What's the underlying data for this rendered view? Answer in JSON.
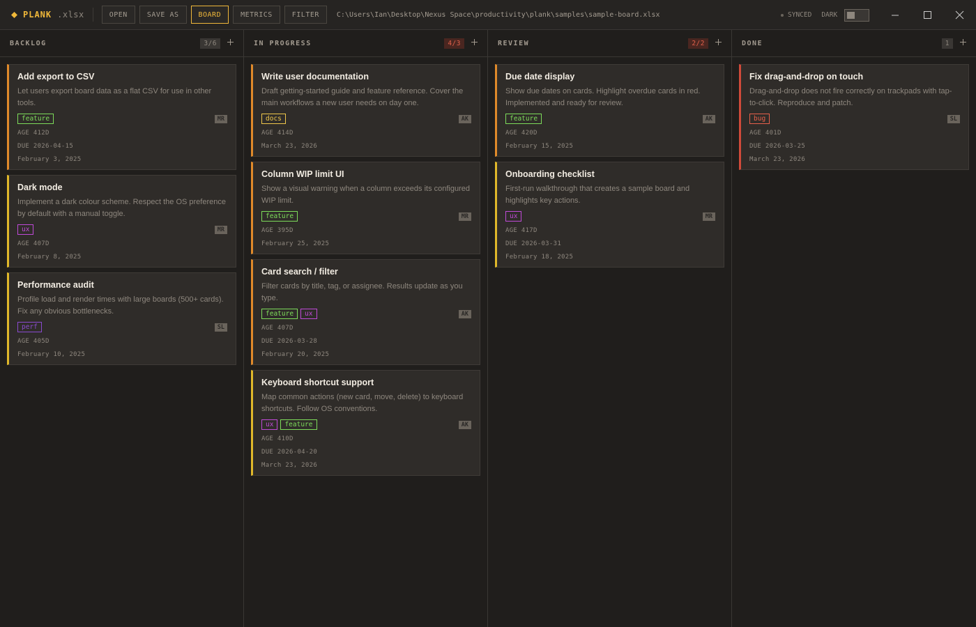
{
  "app": {
    "name": "PLANK",
    "ext": ".xlsx"
  },
  "toolbar": {
    "buttons": [
      "OPEN",
      "SAVE AS",
      "BOARD",
      "METRICS",
      "FILTER"
    ],
    "active_button": 2,
    "path": "C:\\Users\\Ian\\Desktop\\Nexus Space\\productivity\\plank\\samples\\sample-board.xlsx"
  },
  "status": {
    "sync": "SYNCED",
    "theme": "DARK"
  },
  "tag_colors": {
    "feature": "#7ddc5a",
    "docs": "#f0c84a",
    "ux": "#c04ad8",
    "perf": "#8a4ad0",
    "bug": "#e8604a"
  },
  "columns": [
    {
      "title": "BACKLOG",
      "count": "3/6",
      "count_alert": false,
      "cards": [
        {
          "title": "Add export to CSV",
          "desc": "Let users export board data as a flat CSV for use in other tools.",
          "tags": [
            "feature"
          ],
          "assignee": "MR",
          "meta": [
            "AGE 412D",
            "DUE 2026-04-15",
            "February 3, 2025"
          ],
          "accent": "#e08a2a"
        },
        {
          "title": "Dark mode",
          "desc": "Implement a dark colour scheme. Respect the OS preference by default with a manual toggle.",
          "tags": [
            "ux"
          ],
          "assignee": "MR",
          "meta": [
            "AGE 407D",
            "February 8, 2025"
          ],
          "accent": "#e0b82a"
        },
        {
          "title": "Performance audit",
          "desc": "Profile load and render times with large boards (500+ cards). Fix any obvious bottlenecks.",
          "tags": [
            "perf"
          ],
          "assignee": "SL",
          "meta": [
            "AGE 405D",
            "February 10, 2025"
          ],
          "accent": "#e0b82a"
        }
      ]
    },
    {
      "title": "IN PROGRESS",
      "count": "4/3",
      "count_alert": true,
      "cards": [
        {
          "title": "Write user documentation",
          "desc": "Draft getting-started guide and feature reference. Cover the main workflows a new user needs on day one.",
          "tags": [
            "docs"
          ],
          "assignee": "AK",
          "meta": [
            "AGE 414D",
            "March 23, 2026"
          ],
          "accent": "#e08a2a"
        },
        {
          "title": "Column WIP limit UI",
          "desc": "Show a visual warning when a column exceeds its configured WIP limit.",
          "tags": [
            "feature"
          ],
          "assignee": "MR",
          "meta": [
            "AGE 395D",
            "February 25, 2025"
          ],
          "accent": "#e08a2a"
        },
        {
          "title": "Card search / filter",
          "desc": "Filter cards by title, tag, or assignee. Results update as you type.",
          "tags": [
            "feature",
            "ux"
          ],
          "assignee": "AK",
          "meta": [
            "AGE 407D",
            "DUE 2026-03-28",
            "February 20, 2025"
          ],
          "accent": "#e08a2a"
        },
        {
          "title": "Keyboard shortcut support",
          "desc": "Map common actions (new card, move, delete) to keyboard shortcuts. Follow OS conventions.",
          "tags": [
            "ux",
            "feature"
          ],
          "assignee": "AK",
          "meta": [
            "AGE 410D",
            "DUE 2026-04-20",
            "March 23, 2026"
          ],
          "accent": "#e0b82a"
        }
      ]
    },
    {
      "title": "REVIEW",
      "count": "2/2",
      "count_alert": true,
      "cards": [
        {
          "title": "Due date display",
          "desc": "Show due dates on cards. Highlight overdue cards in red. Implemented and ready for review.",
          "tags": [
            "feature"
          ],
          "assignee": "AK",
          "meta": [
            "AGE 420D",
            "February 15, 2025"
          ],
          "accent": "#e08a2a"
        },
        {
          "title": "Onboarding checklist",
          "desc": "First-run walkthrough that creates a sample board and highlights key actions.",
          "tags": [
            "ux"
          ],
          "assignee": "MR",
          "meta": [
            "AGE 417D",
            "DUE 2026-03-31",
            "February 18, 2025"
          ],
          "accent": "#e0b82a"
        }
      ]
    },
    {
      "title": "DONE",
      "count": "1",
      "count_alert": false,
      "cards": [
        {
          "title": "Fix drag-and-drop on touch",
          "desc": "Drag-and-drop does not fire correctly on trackpads with tap-to-click. Reproduce and patch.",
          "tags": [
            "bug"
          ],
          "assignee": "SL",
          "meta": [
            "AGE 401D",
            "DUE 2026-03-25",
            "March 23, 2026"
          ],
          "accent": "#d04a3a"
        }
      ]
    }
  ]
}
